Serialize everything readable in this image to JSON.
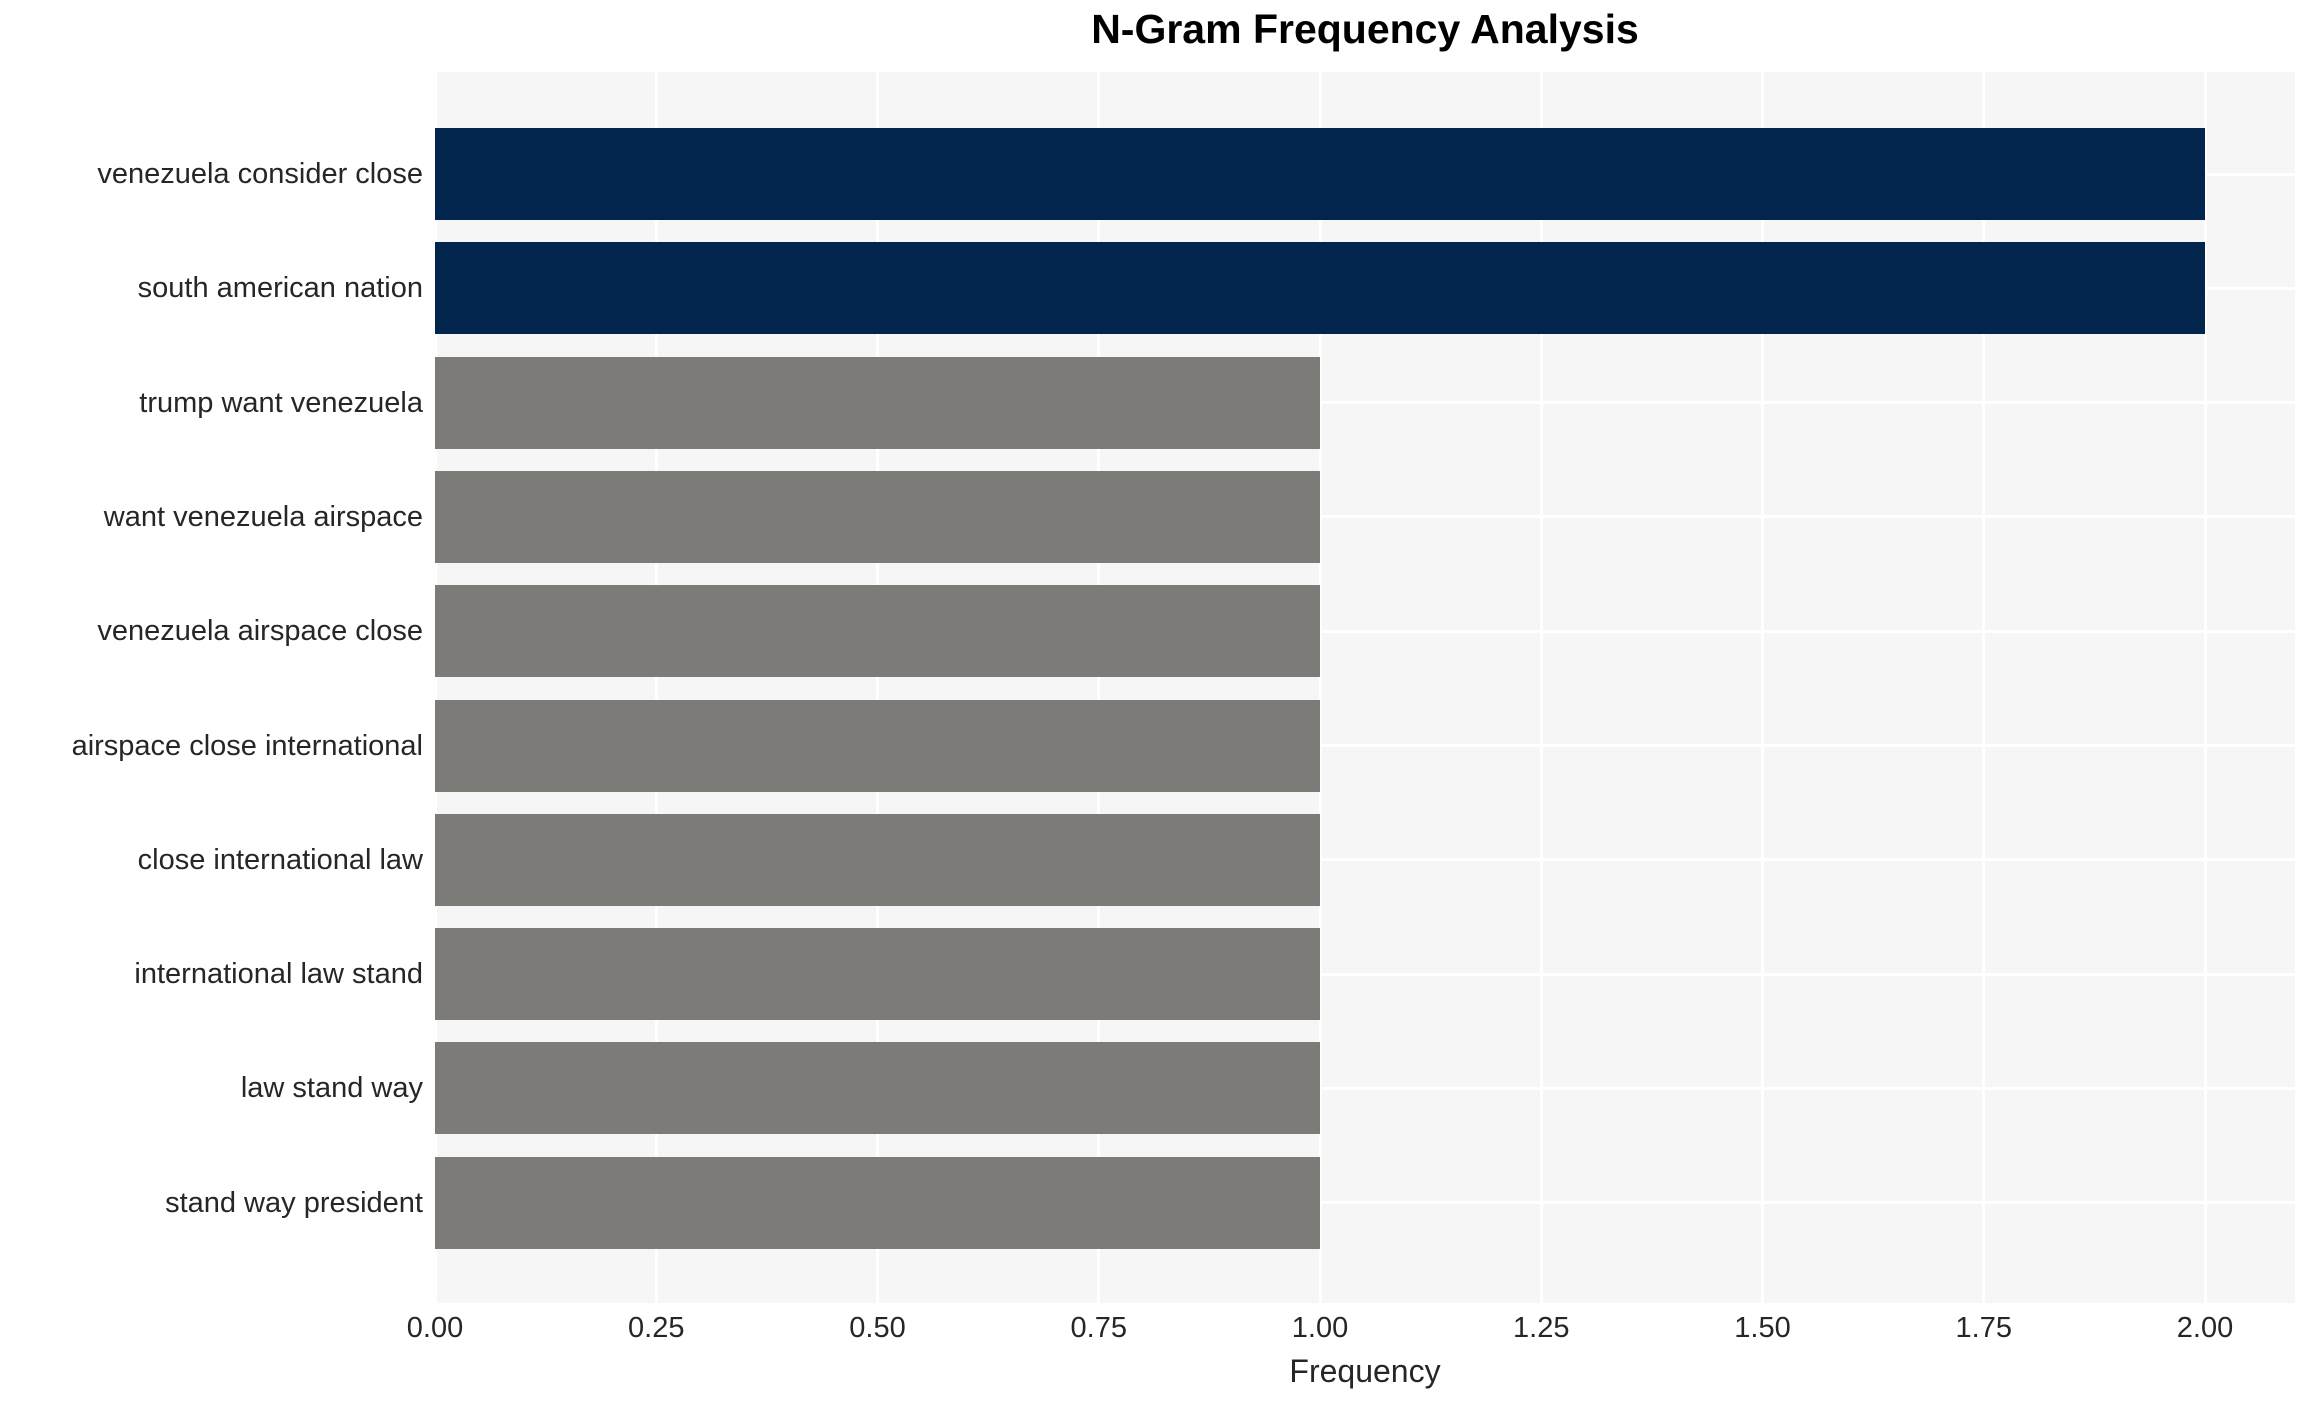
{
  "title": "N-Gram Frequency Analysis",
  "colors": {
    "bar_highlight": "#02254e",
    "bar_default": "#7c7b77",
    "plot_background": "#f7f6f6",
    "gridline": "#ffffff",
    "tick_text": "#262626",
    "title_text": "#000000"
  },
  "chart_data": {
    "type": "bar",
    "orientation": "horizontal",
    "title": "N-Gram Frequency Analysis",
    "xlabel": "Frequency",
    "ylabel": "",
    "grid": true,
    "legend": false,
    "xlim": [
      0,
      2.1
    ],
    "x_ticks": [
      0.0,
      0.25,
      0.5,
      0.75,
      1.0,
      1.25,
      1.5,
      1.75,
      2.0
    ],
    "x_tick_labels": [
      "0.00",
      "0.25",
      "0.50",
      "0.75",
      "1.00",
      "1.25",
      "1.50",
      "1.75",
      "2.00"
    ],
    "categories": [
      "venezuela consider close",
      "south american nation",
      "trump want venezuela",
      "want venezuela airspace",
      "venezuela airspace close",
      "airspace close international",
      "close international law",
      "international law stand",
      "law stand way",
      "stand way president"
    ],
    "values": [
      2,
      2,
      1,
      1,
      1,
      1,
      1,
      1,
      1,
      1
    ],
    "bar_colors": [
      "#02254e",
      "#02254e",
      "#7c7b77",
      "#7c7b77",
      "#7c7b77",
      "#7c7b77",
      "#7c7b77",
      "#7c7b77",
      "#7c7b77",
      "#7c7b77"
    ]
  }
}
